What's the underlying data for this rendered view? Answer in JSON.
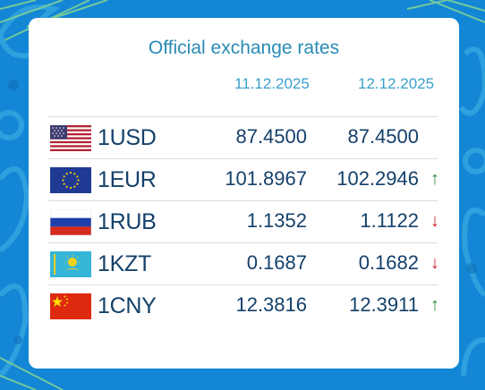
{
  "panel": {
    "title": "Official exchange rates",
    "date_1": "11.12.2025",
    "date_2": "12.12.2025"
  },
  "rates": [
    {
      "code": "1USD",
      "value_1": "87.4500",
      "value_2": "87.4500",
      "trend": "",
      "flag": "us-flag-icon"
    },
    {
      "code": "1EUR",
      "value_1": "101.8967",
      "value_2": "102.2946",
      "trend": "↑",
      "flag": "eu-flag-icon"
    },
    {
      "code": "1RUB",
      "value_1": "1.1352",
      "value_2": "1.1122",
      "trend": "↓",
      "flag": "ru-flag-icon"
    },
    {
      "code": "1KZT",
      "value_1": "0.1687",
      "value_2": "0.1682",
      "trend": "↓",
      "flag": "kz-flag-icon"
    },
    {
      "code": "1CNY",
      "value_1": "12.3816",
      "value_2": "12.3911",
      "trend": "↑",
      "flag": "cn-flag-icon"
    }
  ],
  "colors": {
    "background": "#1486d6",
    "title": "#2a8bb5",
    "text": "#14406a",
    "up": "#2e8b3a",
    "down": "#d0202a"
  }
}
